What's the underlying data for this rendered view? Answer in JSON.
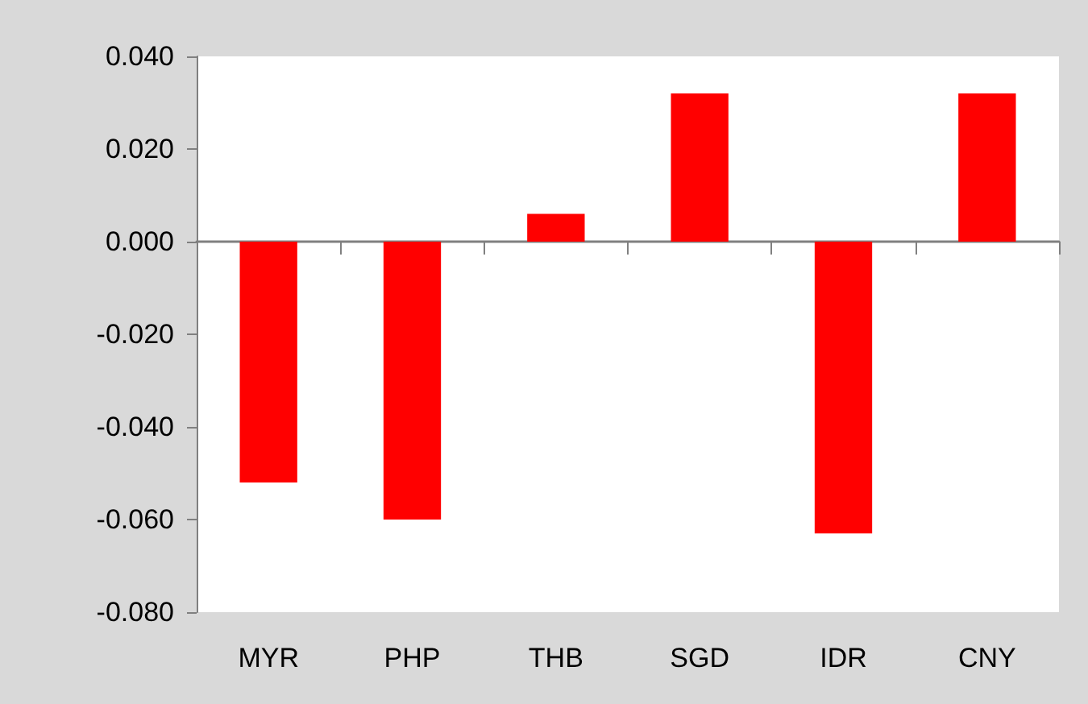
{
  "chart_data": {
    "type": "bar",
    "categories": [
      "MYR",
      "PHP",
      "THB",
      "SGD",
      "IDR",
      "CNY"
    ],
    "values": [
      -0.052,
      -0.06,
      0.006,
      0.032,
      -0.063,
      0.032
    ],
    "color": "#ff0000",
    "ylim": [
      -0.08,
      0.04
    ],
    "yticks": [
      {
        "value": -0.08,
        "label": "-0.080"
      },
      {
        "value": -0.06,
        "label": "-0.060"
      },
      {
        "value": -0.04,
        "label": "-0.040"
      },
      {
        "value": -0.02,
        "label": "-0.020"
      },
      {
        "value": 0,
        "label": "0.000"
      },
      {
        "value": 0.02,
        "label": "0.020"
      },
      {
        "value": 0.04,
        "label": "0.040"
      }
    ],
    "data_labels": false
  }
}
